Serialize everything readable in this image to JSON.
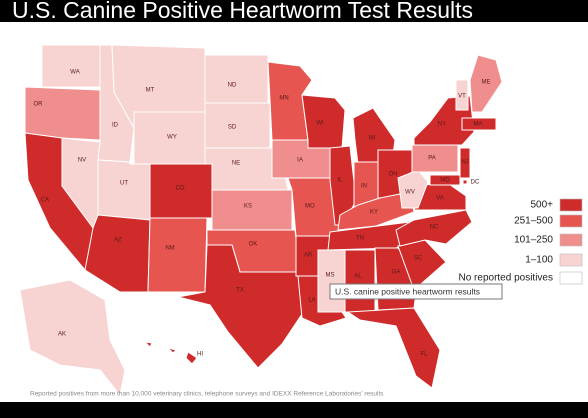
{
  "title": "U.S. Canine Positive Heartworm Test Results",
  "legend": [
    {
      "label": "500+",
      "color": "#cf2b2b"
    },
    {
      "label": "251–500",
      "color": "#e65550"
    },
    {
      "label": "101–250",
      "color": "#ef8e8c"
    },
    {
      "label": "1–100",
      "color": "#f7d3d2"
    },
    {
      "label": "No reported positives",
      "color": "#ffffff"
    }
  ],
  "tooltip": "U.S. canine positive heartworm results",
  "footnote": "Reported positives from more than 10,000 veterinary clinics, telephone surveys and IDEXX Reference Laboratories' results",
  "states": [
    {
      "abbr": "WA",
      "category": "1–100"
    },
    {
      "abbr": "OR",
      "category": "101–250"
    },
    {
      "abbr": "CA",
      "category": "500+"
    },
    {
      "abbr": "NV",
      "category": "1–100"
    },
    {
      "abbr": "ID",
      "category": "1–100"
    },
    {
      "abbr": "MT",
      "category": "1–100"
    },
    {
      "abbr": "WY",
      "category": "1–100"
    },
    {
      "abbr": "UT",
      "category": "1–100"
    },
    {
      "abbr": "AZ",
      "category": "500+"
    },
    {
      "abbr": "CO",
      "category": "500+"
    },
    {
      "abbr": "NM",
      "category": "251–500"
    },
    {
      "abbr": "ND",
      "category": "1–100"
    },
    {
      "abbr": "SD",
      "category": "1–100"
    },
    {
      "abbr": "NE",
      "category": "1–100"
    },
    {
      "abbr": "KS",
      "category": "101–250"
    },
    {
      "abbr": "OK",
      "category": "251–500"
    },
    {
      "abbr": "TX",
      "category": "500+"
    },
    {
      "abbr": "MN",
      "category": "251–500"
    },
    {
      "abbr": "IA",
      "category": "101–250"
    },
    {
      "abbr": "MO",
      "category": "251–500"
    },
    {
      "abbr": "AR",
      "category": "500+"
    },
    {
      "abbr": "LA",
      "category": "500+"
    },
    {
      "abbr": "WI",
      "category": "500+"
    },
    {
      "abbr": "IL",
      "category": "500+"
    },
    {
      "abbr": "MI",
      "category": "500+"
    },
    {
      "abbr": "IN",
      "category": "251–500"
    },
    {
      "abbr": "OH",
      "category": "500+"
    },
    {
      "abbr": "KY",
      "category": "251–500"
    },
    {
      "abbr": "TN",
      "category": "500+"
    },
    {
      "abbr": "MS",
      "category": "1–100"
    },
    {
      "abbr": "AL",
      "category": "500+"
    },
    {
      "abbr": "GA",
      "category": "500+"
    },
    {
      "abbr": "FL",
      "category": "500+"
    },
    {
      "abbr": "SC",
      "category": "500+"
    },
    {
      "abbr": "NC",
      "category": "500+"
    },
    {
      "abbr": "VA",
      "category": "500+"
    },
    {
      "abbr": "WV",
      "category": "1–100"
    },
    {
      "abbr": "PA",
      "category": "101–250"
    },
    {
      "abbr": "NY",
      "category": "500+"
    },
    {
      "abbr": "VT",
      "category": "1–100"
    },
    {
      "abbr": "ME",
      "category": "101–250"
    },
    {
      "abbr": "MA",
      "category": "500+"
    },
    {
      "abbr": "NJ",
      "category": "500+"
    },
    {
      "abbr": "MD",
      "category": "500+"
    },
    {
      "abbr": "DC",
      "category": "500+"
    },
    {
      "abbr": "AK",
      "category": "1–100"
    },
    {
      "abbr": "HI",
      "category": "500+"
    }
  ]
}
